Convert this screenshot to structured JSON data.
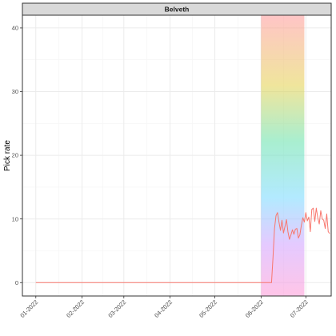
{
  "chart_data": {
    "type": "line",
    "title": "",
    "panel_title": "Belveth",
    "xlabel": "",
    "ylabel": "Pick rate",
    "x_tick_labels": [
      "01-2022",
      "02-2022",
      "03-2022",
      "04-2022",
      "05-2022",
      "06-2022",
      "07-2022"
    ],
    "x_tick_dates": [
      "2022-01-01",
      "2022-02-01",
      "2022-03-01",
      "2022-04-01",
      "2022-05-01",
      "2022-06-01",
      "2022-07-01"
    ],
    "xlim": [
      "2021-12-23",
      "2022-07-18"
    ],
    "ylim": [
      -2.1,
      42
    ],
    "y_ticks": [
      0,
      10,
      20,
      30,
      40
    ],
    "grid": true,
    "highlight_band": {
      "x_start": "2022-06-01",
      "x_end": "2022-06-30",
      "fill": "rainbow"
    },
    "series": [
      {
        "color": "#f8766d",
        "points": [
          [
            "2022-01-01",
            0
          ],
          [
            "2022-06-08",
            0
          ],
          [
            "2022-06-09",
            4.0
          ],
          [
            "2022-06-10",
            8.5
          ],
          [
            "2022-06-11",
            10.5
          ],
          [
            "2022-06-12",
            11.0
          ],
          [
            "2022-06-13",
            9.5
          ],
          [
            "2022-06-14",
            8.2
          ],
          [
            "2022-06-15",
            9.8
          ],
          [
            "2022-06-16",
            7.8
          ],
          [
            "2022-06-17",
            8.8
          ],
          [
            "2022-06-18",
            9.9
          ],
          [
            "2022-06-19",
            8.0
          ],
          [
            "2022-06-20",
            6.8
          ],
          [
            "2022-06-21",
            7.5
          ],
          [
            "2022-06-22",
            8.3
          ],
          [
            "2022-06-23",
            7.6
          ],
          [
            "2022-06-24",
            8.4
          ],
          [
            "2022-06-25",
            8.5
          ],
          [
            "2022-06-26",
            7.0
          ],
          [
            "2022-06-27",
            7.5
          ],
          [
            "2022-06-28",
            9.0
          ],
          [
            "2022-06-29",
            10.2
          ],
          [
            "2022-06-30",
            9.5
          ],
          [
            "2022-07-01",
            11.0
          ],
          [
            "2022-07-02",
            9.7
          ],
          [
            "2022-07-03",
            10.3
          ],
          [
            "2022-07-04",
            8.0
          ],
          [
            "2022-07-05",
            11.5
          ],
          [
            "2022-07-06",
            11.7
          ],
          [
            "2022-07-07",
            9.6
          ],
          [
            "2022-07-08",
            11.7
          ],
          [
            "2022-07-09",
            10.2
          ],
          [
            "2022-07-10",
            9.2
          ],
          [
            "2022-07-11",
            11.3
          ],
          [
            "2022-07-12",
            10.0
          ],
          [
            "2022-07-13",
            9.8
          ],
          [
            "2022-07-14",
            8.5
          ],
          [
            "2022-07-15",
            10.8
          ],
          [
            "2022-07-16",
            8.0
          ],
          [
            "2022-07-17",
            7.7
          ]
        ]
      }
    ],
    "colors": {
      "panel_border": "#333333",
      "strip_fill": "#d9d9d9",
      "grid_major": "#ebebeb",
      "grid_minor": "#f4f4f4",
      "axis_text": "#4d4d4d",
      "line": "#f8766d"
    }
  }
}
